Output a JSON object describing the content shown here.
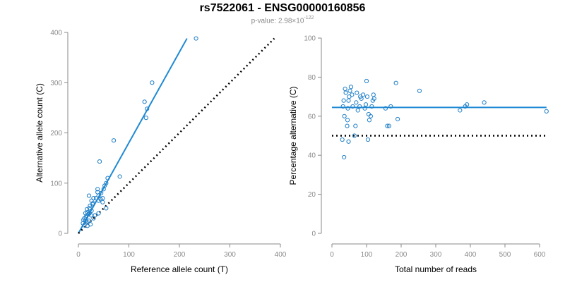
{
  "title": "rs7522061 - ENSG00000160856",
  "subtitle": {
    "prefix": "p-value: 2.98×10",
    "exponent": "-122"
  },
  "colors": {
    "points": "#1f7fc8",
    "fit": "#1f8ad4",
    "reference": "#000000",
    "axis": "#8a8a8a"
  },
  "chart_data": [
    {
      "type": "scatter",
      "xlabel": "Reference allele count (T)",
      "ylabel": "Alternative allele count (C)",
      "xlim": [
        0,
        400
      ],
      "ylim": [
        0,
        400
      ],
      "xticks": [
        0,
        100,
        200,
        300,
        400
      ],
      "yticks": [
        0,
        100,
        200,
        300,
        400
      ],
      "grid": false,
      "lines": [
        {
          "kind": "fit",
          "style": "solid",
          "x": [
            0,
            215
          ],
          "y": [
            0,
            388
          ]
        },
        {
          "kind": "reference",
          "style": "dotted",
          "x": [
            0,
            388
          ],
          "y": [
            0,
            388
          ]
        }
      ],
      "points": [
        [
          233,
          388
        ],
        [
          146,
          300
        ],
        [
          131,
          262
        ],
        [
          136,
          248
        ],
        [
          134,
          230
        ],
        [
          70,
          185
        ],
        [
          82,
          113
        ],
        [
          42,
          143
        ],
        [
          58,
          110
        ],
        [
          55,
          100
        ],
        [
          52,
          95
        ],
        [
          50,
          88
        ],
        [
          38,
          88
        ],
        [
          38,
          82
        ],
        [
          45,
          80
        ],
        [
          40,
          75
        ],
        [
          35,
          70
        ],
        [
          48,
          70
        ],
        [
          44,
          68
        ],
        [
          40,
          65
        ],
        [
          48,
          62
        ],
        [
          30,
          70
        ],
        [
          26,
          65
        ],
        [
          28,
          58
        ],
        [
          23,
          55
        ],
        [
          21,
          75
        ],
        [
          29,
          60
        ],
        [
          22,
          50
        ],
        [
          17,
          48
        ],
        [
          26,
          45
        ],
        [
          18,
          42
        ],
        [
          14,
          40
        ],
        [
          22,
          40
        ],
        [
          20,
          38
        ],
        [
          16,
          35
        ],
        [
          12,
          30
        ],
        [
          10,
          27
        ],
        [
          14,
          25
        ],
        [
          18,
          22
        ],
        [
          9,
          20
        ],
        [
          12,
          16
        ],
        [
          18,
          15
        ],
        [
          24,
          18
        ],
        [
          21,
          25
        ],
        [
          30,
          30
        ],
        [
          33,
          36
        ],
        [
          40,
          40
        ],
        [
          55,
          50
        ],
        [
          25,
          36
        ],
        [
          15,
          32
        ]
      ]
    },
    {
      "type": "scatter",
      "xlabel": "Total number of reads",
      "ylabel": "Percentage alternative (C)",
      "xlim": [
        0,
        600
      ],
      "ylim": [
        0,
        100
      ],
      "xticks": [
        0,
        100,
        200,
        300,
        400,
        500,
        600
      ],
      "yticks": [
        0,
        20,
        40,
        60,
        80,
        100
      ],
      "grid": false,
      "lines": [
        {
          "kind": "fit",
          "style": "solid",
          "x": [
            0,
            620
          ],
          "y": [
            64.5,
            64.5
          ]
        },
        {
          "kind": "reference",
          "style": "dotted",
          "x": [
            0,
            620
          ],
          "y": [
            50,
            50
          ]
        }
      ],
      "points": [
        [
          620,
          62.5
        ],
        [
          440,
          67
        ],
        [
          390,
          66
        ],
        [
          385,
          65
        ],
        [
          370,
          63
        ],
        [
          253,
          73
        ],
        [
          185,
          77
        ],
        [
          190,
          58.5
        ],
        [
          170,
          65
        ],
        [
          155,
          64
        ],
        [
          160,
          55
        ],
        [
          165,
          55
        ],
        [
          118,
          68
        ],
        [
          120,
          71
        ],
        [
          122,
          69
        ],
        [
          115,
          65
        ],
        [
          112,
          60
        ],
        [
          108,
          58
        ],
        [
          106,
          61
        ],
        [
          100,
          78
        ],
        [
          102,
          70
        ],
        [
          98,
          66
        ],
        [
          95,
          64
        ],
        [
          90,
          71
        ],
        [
          85,
          69
        ],
        [
          82,
          70
        ],
        [
          80,
          65
        ],
        [
          75,
          63
        ],
        [
          72,
          72
        ],
        [
          70,
          67
        ],
        [
          68,
          55
        ],
        [
          65,
          50
        ],
        [
          60,
          65
        ],
        [
          58,
          71
        ],
        [
          55,
          75
        ],
        [
          52,
          73
        ],
        [
          50,
          70
        ],
        [
          48,
          68
        ],
        [
          46,
          64
        ],
        [
          45,
          58
        ],
        [
          44,
          55
        ],
        [
          40,
          72
        ],
        [
          38,
          74
        ],
        [
          36,
          60
        ],
        [
          34,
          68
        ],
        [
          32,
          65
        ],
        [
          30,
          48
        ],
        [
          48,
          47
        ],
        [
          35,
          39
        ],
        [
          104,
          48
        ]
      ]
    }
  ]
}
